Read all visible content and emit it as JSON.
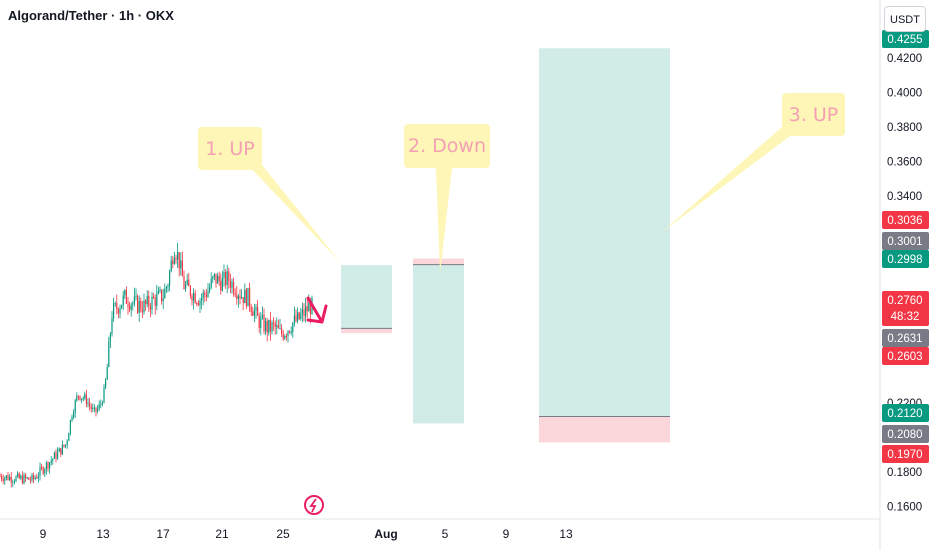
{
  "header": {
    "title": "Algorand/Tether · 1h · OKX",
    "currency": "USDT"
  },
  "chart_data": {
    "type": "candlestick",
    "symbol": "Algorand/Tether",
    "interval": "1h",
    "exchange": "OKX",
    "yaxis": {
      "ylim": [
        0.15,
        0.43
      ],
      "ticks": [
        "0.1600",
        "0.1800",
        "0.2200",
        "0.3400",
        "0.3600",
        "0.3800",
        "0.4000",
        "0.4200"
      ]
    },
    "xaxis": {
      "ticks": [
        {
          "label": "9",
          "bold": false
        },
        {
          "label": "13",
          "bold": false
        },
        {
          "label": "17",
          "bold": false
        },
        {
          "label": "21",
          "bold": false
        },
        {
          "label": "25",
          "bold": false
        },
        {
          "label": "Aug",
          "bold": true
        },
        {
          "label": "5",
          "bold": false
        },
        {
          "label": "9",
          "bold": false
        },
        {
          "label": "13",
          "bold": false
        }
      ]
    },
    "price_labels": [
      {
        "text": "0.4255",
        "value": 0.4255,
        "color": "#089981"
      },
      {
        "text": "0.3036",
        "value": 0.3036,
        "color": "#f23645"
      },
      {
        "text": "0.3001",
        "value": 0.3001,
        "color": "#787b86"
      },
      {
        "text": "0.2998",
        "value": 0.2998,
        "color": "#089981"
      },
      {
        "text": "0.2760",
        "value": 0.276,
        "color": "#f23645",
        "countdown": "48:32"
      },
      {
        "text": "0.2631",
        "value": 0.2631,
        "color": "#787b86"
      },
      {
        "text": "0.2603",
        "value": 0.2603,
        "color": "#f23645"
      },
      {
        "text": "0.2120",
        "value": 0.212,
        "color": "#089981"
      },
      {
        "text": "0.2080",
        "value": 0.208,
        "color": "#787b86"
      },
      {
        "text": "0.1970",
        "value": 0.197,
        "color": "#f23645"
      }
    ],
    "positions": [
      {
        "name": "long-position-1",
        "entry": 0.2631,
        "target": 0.2998,
        "stop": 0.2603
      },
      {
        "name": "short-position-2",
        "entry": 0.3001,
        "target": 0.208,
        "stop": 0.3036
      },
      {
        "name": "long-position-3",
        "entry": 0.212,
        "target": 0.4255,
        "stop": 0.197
      }
    ],
    "annotations": [
      {
        "text": "1. UP"
      },
      {
        "text": "2. Down"
      },
      {
        "text": "3. UP"
      }
    ],
    "colors": {
      "up": "#089981",
      "down": "#f23645",
      "profit_zone": "#d1ece6",
      "loss_zone": "#fbd7db",
      "callout_bg": "#fdf6b6",
      "callout_text": "#f4a0b4",
      "arrow": "#e91e63"
    }
  }
}
